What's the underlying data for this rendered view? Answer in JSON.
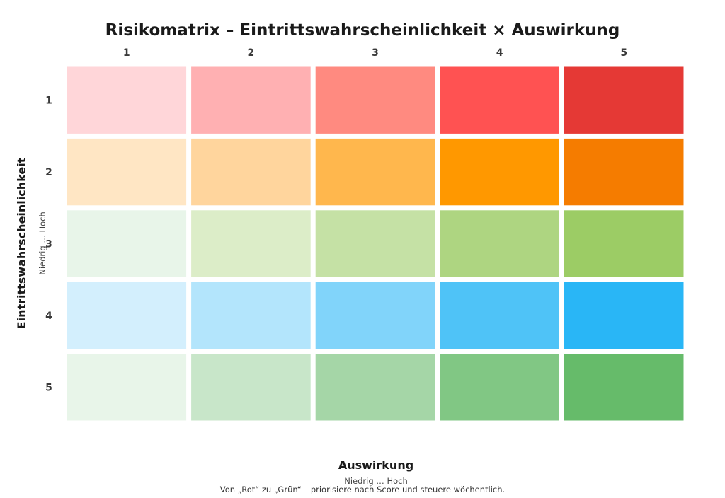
{
  "chart_data": {
    "type": "heatmap",
    "title": "Risikomatrix – Eintrittswahrscheinlichkeit × Auswirkung",
    "xlabel": "Auswirkung",
    "xlabel_sub": "Niedrig … Hoch",
    "ylabel": "Eintrittswahrscheinlichkeit",
    "ylabel_sub": "Niedrig … Hoch",
    "x_ticks": [
      "1",
      "2",
      "3",
      "4",
      "5"
    ],
    "y_ticks": [
      "1",
      "2",
      "3",
      "4",
      "5"
    ],
    "grid": false,
    "cell_colors": [
      [
        "#ffd6d9",
        "#ffb0b2",
        "#ff8a80",
        "#ff5252",
        "#e53935"
      ],
      [
        "#ffe6c4",
        "#ffd59d",
        "#ffb74d",
        "#ff9800",
        "#f57c00"
      ],
      [
        "#e8f5e9",
        "#dcedc8",
        "#c5e1a5",
        "#aed581",
        "#9ccc65"
      ],
      [
        "#d3effd",
        "#b3e5fc",
        "#81d4fa",
        "#4fc3f7",
        "#29b6f6"
      ],
      [
        "#e8f5e9",
        "#c8e6c9",
        "#a5d6a7",
        "#81c784",
        "#66bb6a"
      ]
    ],
    "footnote": "Von „Rot“ zu „Grün“ – priorisiere nach Score und steuere wöchentlich."
  }
}
